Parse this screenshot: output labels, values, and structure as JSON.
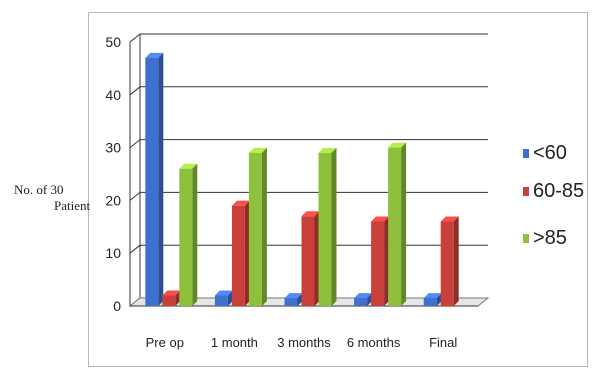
{
  "chart_data": {
    "type": "bar",
    "title": "",
    "xlabel": "",
    "ylabel": [
      "No. of 30",
      "Patient"
    ],
    "ylim": [
      0,
      50
    ],
    "yticks": [
      0,
      10,
      20,
      30,
      40,
      50
    ],
    "categories": [
      "Pre op",
      "1 month",
      "3 months",
      "6 months",
      "Final"
    ],
    "series": [
      {
        "name": "<60",
        "color": "#3f6fcf",
        "values": [
          47,
          2,
          1.5,
          1.5,
          1.5
        ]
      },
      {
        "name": "60-85",
        "color": "#c9403a",
        "values": [
          2,
          19,
          17,
          16,
          16
        ]
      },
      {
        "name": ">85",
        "color": "#8fc03c",
        "values": [
          26,
          29,
          29,
          30,
          null
        ]
      }
    ],
    "grid": true,
    "legend": "right",
    "style": "3d-clustered-column"
  }
}
